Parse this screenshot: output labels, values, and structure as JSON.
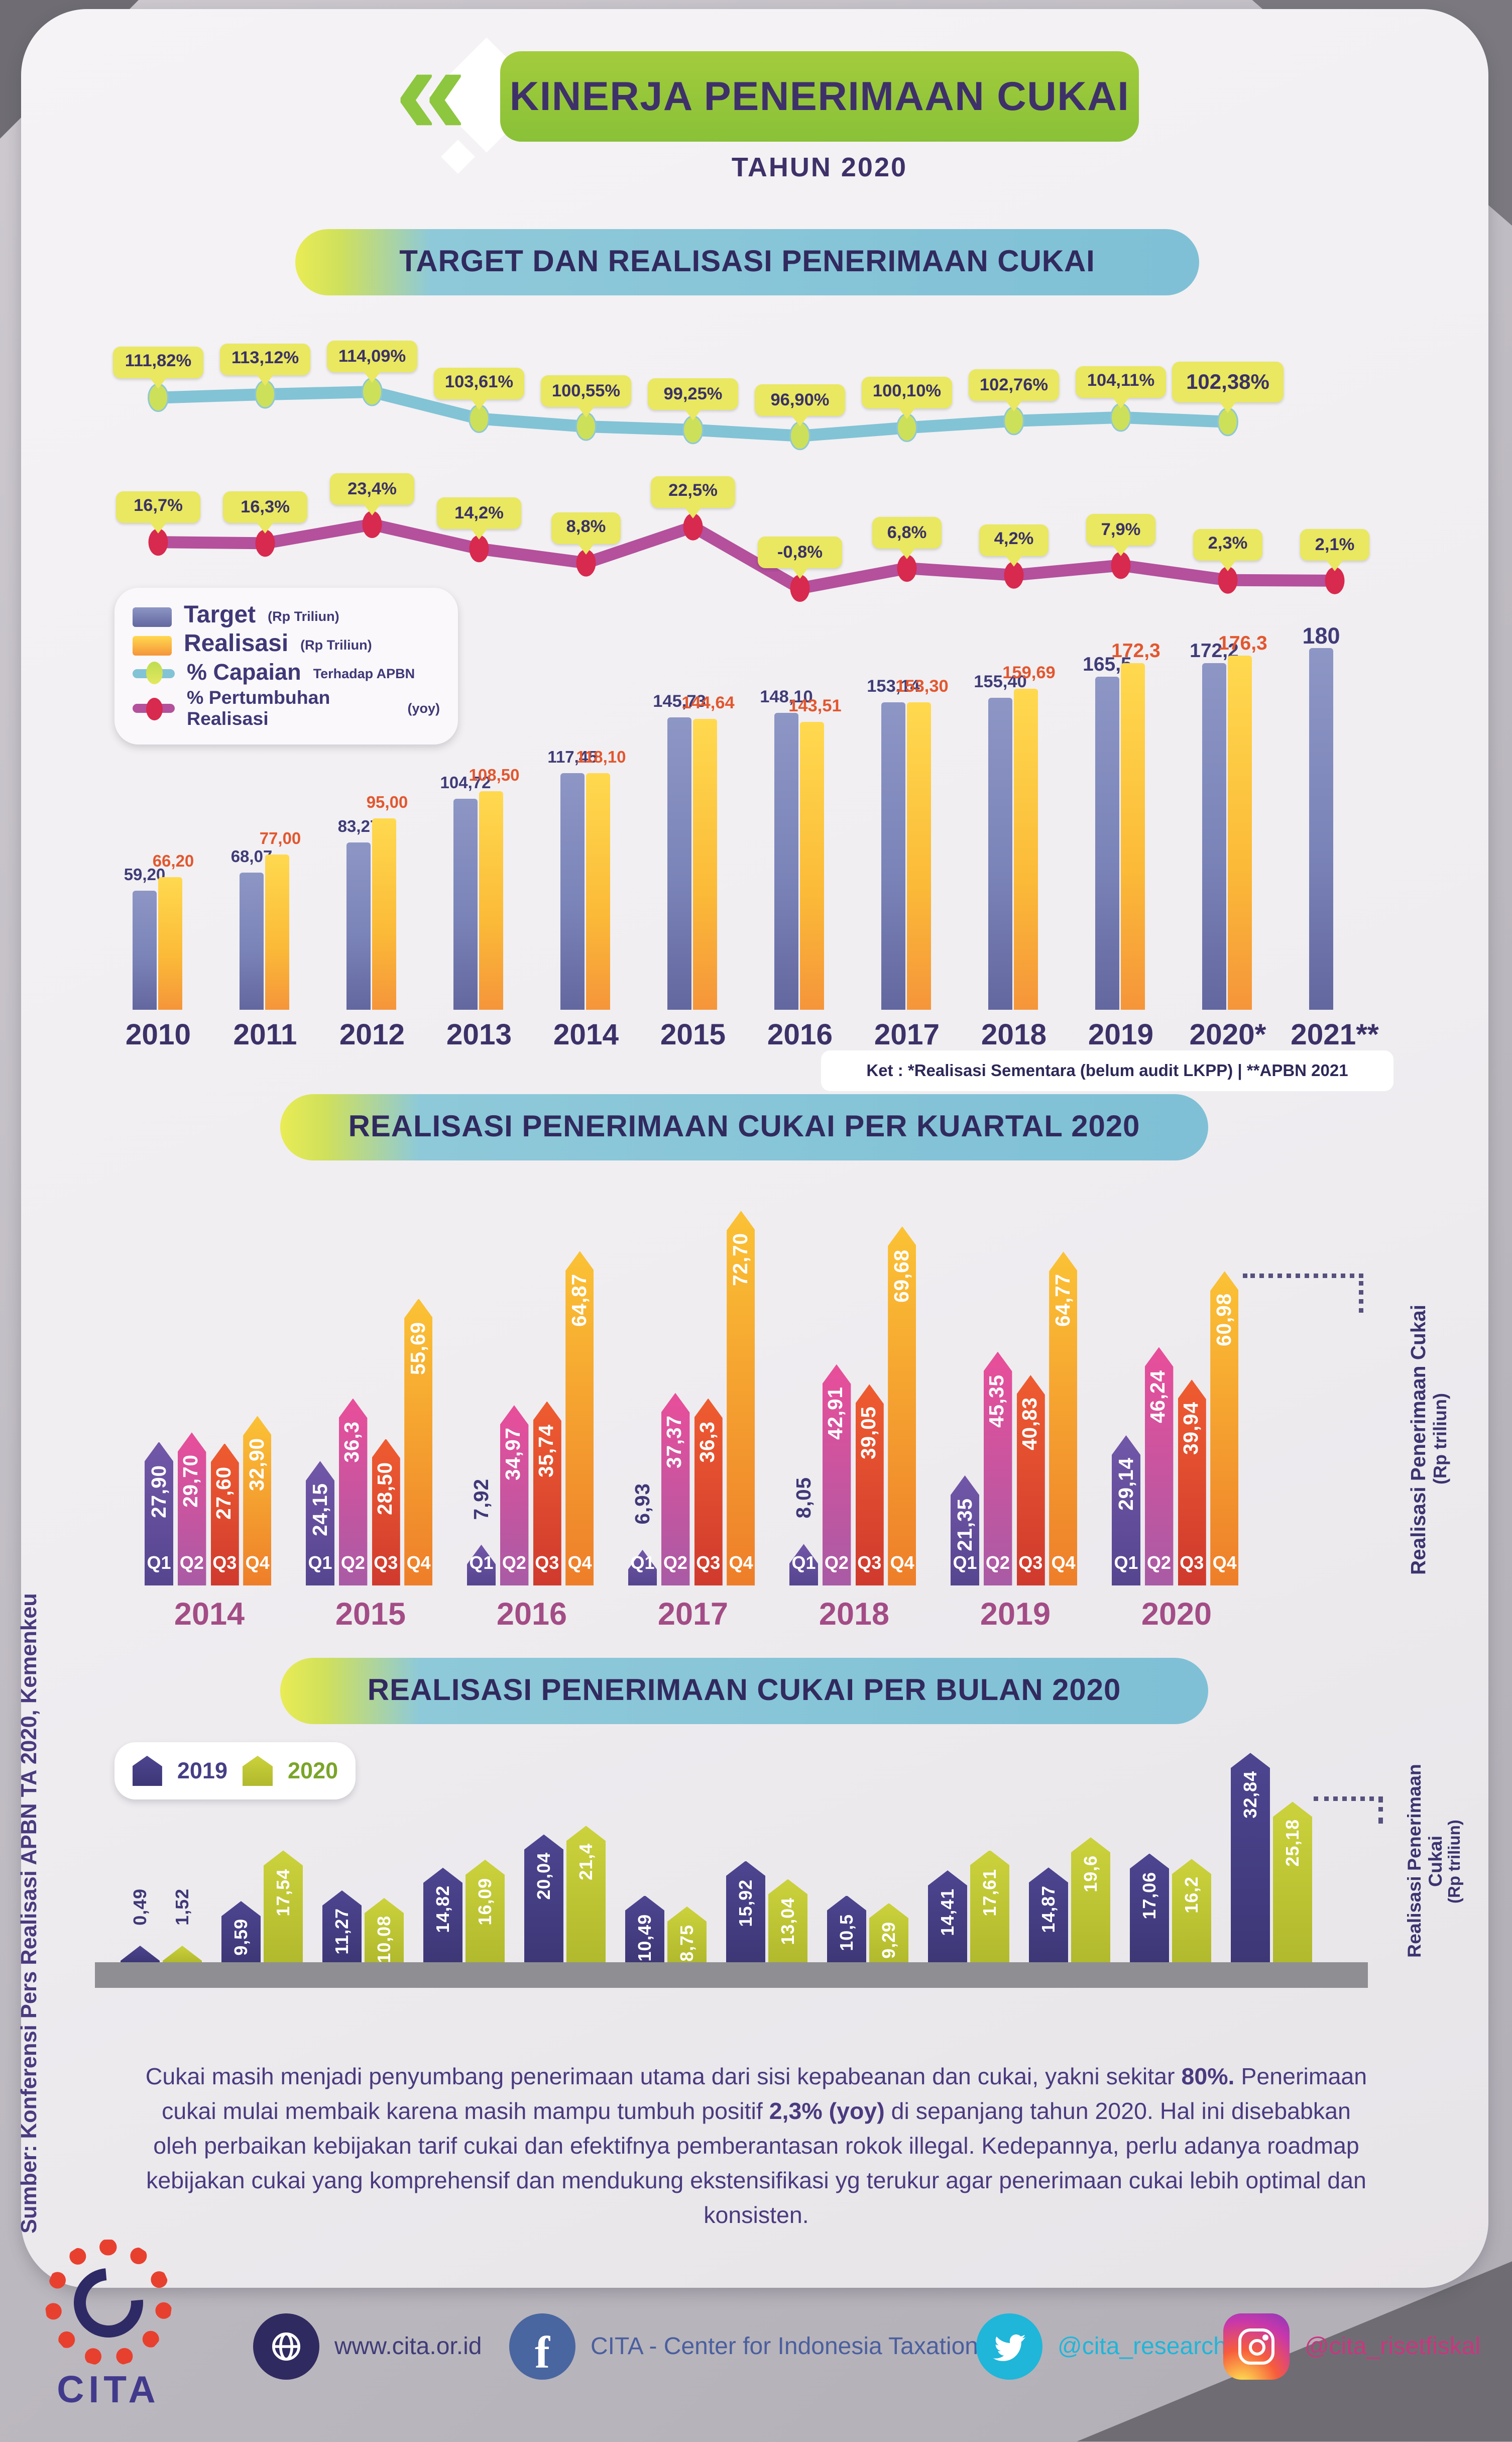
{
  "header": {
    "badge": "KINERJA PENERIMAAN CUKAI",
    "subtitle": "TAHUN 2020"
  },
  "source_note": "Sumber: Konferensi Pers Realisasi APBN TA 2020, Kemenkeu",
  "colors": {
    "accent_green": "#8dc63f",
    "section_blue": "#7fc0d6",
    "badge_yellow": "#e9e860",
    "target_bar": "#7b84b8",
    "realisasi_bar": "#fbba38",
    "capaian_line": "#82c3d6",
    "growth_line": "#b4509c",
    "q1": "#5f4a9c",
    "q2": "#d94f97",
    "q3": "#e4502e",
    "q4": "#f5a12d",
    "year2019": "#453f85",
    "year2020": "#c3ca33"
  },
  "chart_data": [
    {
      "type": "bar",
      "title": "TARGET DAN REALISASI PENERIMAAN CUKAI",
      "categories": [
        "2010",
        "2011",
        "2012",
        "2013",
        "2014",
        "2015",
        "2016",
        "2017",
        "2018",
        "2019",
        "2020*",
        "2021**"
      ],
      "series": [
        {
          "name": "Target (Rp Triliun)",
          "values": [
            59.2,
            68.07,
            83.27,
            104.72,
            117.45,
            145.73,
            148.1,
            153.14,
            155.4,
            165.5,
            172.2,
            180
          ],
          "labels": [
            "59,20",
            "68,07",
            "83,27",
            "104,72",
            "117,45",
            "145,73",
            "148,10",
            "153,14",
            "155,40",
            "165,5",
            "172,2",
            "180"
          ]
        },
        {
          "name": "Realisasi (Rp Triliun)",
          "values": [
            66.2,
            77.0,
            95.0,
            108.5,
            118.1,
            144.64,
            143.51,
            153.3,
            159.69,
            172.3,
            176.3,
            null
          ],
          "labels": [
            "66,20",
            "77,00",
            "95,00",
            "108,50",
            "118,10",
            "144,64",
            "143,51",
            "153,30",
            "159,69",
            "172,3",
            "176,3",
            ""
          ]
        },
        {
          "name": "% Capaian Terhadap APBN",
          "values": [
            111.82,
            113.12,
            114.09,
            103.61,
            100.55,
            99.25,
            96.9,
            100.1,
            102.76,
            104.11,
            102.38
          ],
          "labels": [
            "111,82%",
            "113,12%",
            "114,09%",
            "103,61%",
            "100,55%",
            "99,25%",
            "96,90%",
            "100,10%",
            "102,76%",
            "104,11%",
            "102,38%"
          ]
        },
        {
          "name": "% Pertumbuhan Realisasi (yoy)",
          "values": [
            16.7,
            16.3,
            23.4,
            14.2,
            8.8,
            22.5,
            -0.8,
            6.8,
            4.2,
            7.9,
            2.3,
            2.1
          ],
          "labels": [
            "16,7%",
            "16,3%",
            "23,4%",
            "14,2%",
            "8,8%",
            "22,5%",
            "-0,8%",
            "6,8%",
            "4,2%",
            "7,9%",
            "2,3%",
            "2,1%"
          ]
        }
      ],
      "legend": [
        {
          "label": "Target",
          "sub": "(Rp Triliun)"
        },
        {
          "label": "Realisasi",
          "sub": "(Rp Triliun)"
        },
        {
          "label": "% Capaian",
          "sub": "Terhadap APBN"
        },
        {
          "label": "% Pertumbuhan Realisasi",
          "sub": "(yoy)"
        }
      ],
      "note": "Ket :  *Realisasi Sementara (belum audit LKPP)   |   **APBN 2021"
    },
    {
      "type": "bar",
      "title": "REALISASI PENERIMAAN CUKAI PER KUARTAL 2020",
      "quarters": [
        "Q1",
        "Q2",
        "Q3",
        "Q4"
      ],
      "years": [
        "2014",
        "2015",
        "2016",
        "2017",
        "2018",
        "2019",
        "2020"
      ],
      "values": [
        [
          27.9,
          29.7,
          27.6,
          32.9
        ],
        [
          24.15,
          36.3,
          28.5,
          55.69
        ],
        [
          7.92,
          34.97,
          35.74,
          64.87
        ],
        [
          6.93,
          37.37,
          36.3,
          72.7
        ],
        [
          8.05,
          42.91,
          39.05,
          69.68
        ],
        [
          21.35,
          45.35,
          40.83,
          64.77
        ],
        [
          29.14,
          46.24,
          39.94,
          60.98
        ]
      ],
      "labels": [
        [
          "27,90",
          "29,70",
          "27,60",
          "32,90"
        ],
        [
          "24,15",
          "36,3",
          "28,50",
          "55,69"
        ],
        [
          "7,92",
          "34,97",
          "35,74",
          "64,87"
        ],
        [
          "6,93",
          "37,37",
          "36,3",
          "72,70"
        ],
        [
          "8,05",
          "42,91",
          "39,05",
          "69,68"
        ],
        [
          "21,35",
          "45,35",
          "40,83",
          "64,77"
        ],
        [
          "29,14",
          "46,24",
          "39,94",
          "60,98"
        ]
      ],
      "ylabel": "Realisasi Penerimaan Cukai",
      "ylabel2": "(Rp triliun)"
    },
    {
      "type": "bar",
      "title": "REALISASI PENERIMAAN CUKAI PER BULAN 2020",
      "legend": [
        "2019",
        "2020"
      ],
      "series": [
        {
          "name": "2019",
          "values": [
            0.49,
            9.59,
            11.27,
            14.82,
            20.04,
            10.49,
            15.92,
            10.5,
            14.41,
            14.87,
            17.06,
            32.84
          ],
          "labels": [
            "0,49",
            "9,59",
            "11,27",
            "14,82",
            "20,04",
            "10,49",
            "15,92",
            "10,5",
            "14,41",
            "14,87",
            "17,06",
            "32,84"
          ]
        },
        {
          "name": "2020",
          "values": [
            1.52,
            17.54,
            10.08,
            16.09,
            21.4,
            8.75,
            13.04,
            9.29,
            17.61,
            19.6,
            16.2,
            25.18
          ],
          "labels": [
            "1,52",
            "17,54",
            "10,08",
            "16,09",
            "21,4",
            "8,75",
            "13,04",
            "9,29",
            "17,61",
            "19,6",
            "16,2",
            "25,18"
          ]
        }
      ],
      "ylabel": "Realisasi Penerimaan Cukai",
      "ylabel2": "(Rp triliun)"
    }
  ],
  "paragraph": [
    {
      "text": "Cukai masih menjadi penyumbang penerimaan utama dari sisi kepabeanan dan cukai, yakni sekitar ",
      "bold": false
    },
    {
      "text": "80%.",
      "bold": true
    },
    {
      "text": " Penerimaan cukai mulai membaik karena masih mampu tumbuh positif ",
      "bold": false
    },
    {
      "text": "2,3% (yoy)",
      "bold": true
    },
    {
      "text": " di sepanjang tahun 2020. Hal ini disebabkan oleh perbaikan kebijakan tarif cukai dan efektifnya pemberantasan rokok illegal. Kedepannya, perlu  adanya roadmap kebijakan cukai yang komprehensif dan mendukung ekstensifikasi yg terukur agar penerimaan cukai lebih optimal dan konsisten.",
      "bold": false
    }
  ],
  "footer": {
    "logo": "CITA",
    "website": "www.cita.or.id",
    "facebook": "CITA - Center for Indonesia Taxation",
    "twitter": "@cita_research",
    "instagram": "@cita_risetfiskal"
  }
}
